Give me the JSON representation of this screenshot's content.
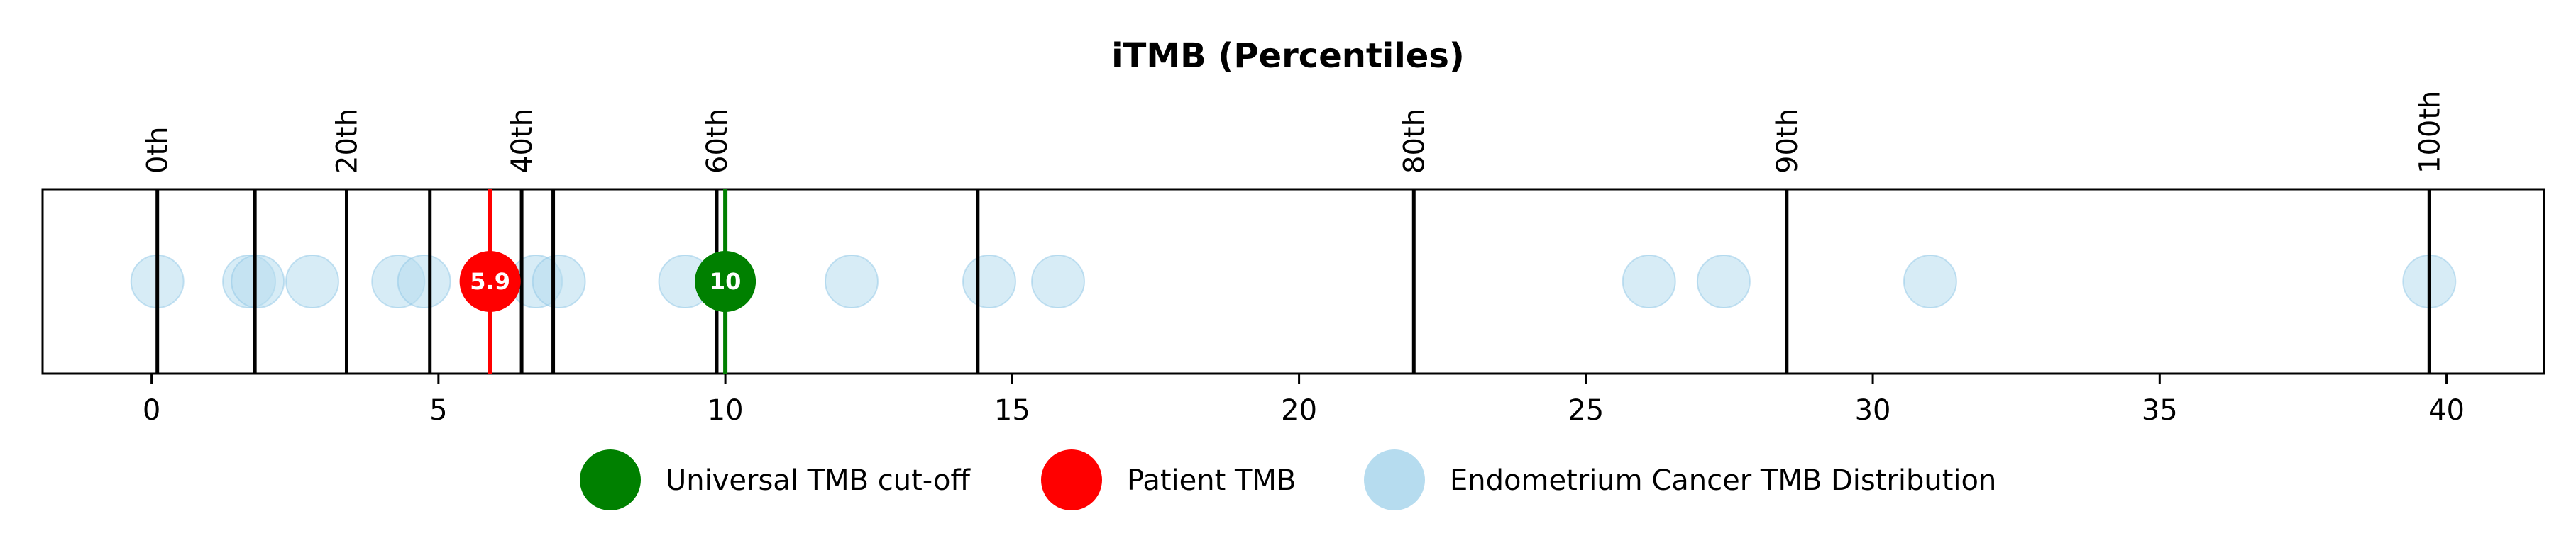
{
  "chart_data": {
    "type": "scatter",
    "title": "iTMB (Percentiles)",
    "xlabel": "",
    "ylabel": "",
    "xlim": [
      -1.9,
      41.7
    ],
    "xticks": [
      0,
      5,
      10,
      15,
      20,
      25,
      30,
      35,
      40
    ],
    "xtick_labels": [
      "0",
      "5",
      "10",
      "15",
      "20",
      "25",
      "30",
      "35",
      "40"
    ],
    "grid": false,
    "percentile_lines": [
      {
        "x": 0.1,
        "label": "0th"
      },
      {
        "x": 1.8,
        "label": ""
      },
      {
        "x": 3.4,
        "label": "20th"
      },
      {
        "x": 4.85,
        "label": ""
      },
      {
        "x": 6.45,
        "label": "40th"
      },
      {
        "x": 7.0,
        "label": ""
      },
      {
        "x": 9.85,
        "label": "60th"
      },
      {
        "x": 14.4,
        "label": ""
      },
      {
        "x": 22.0,
        "label": "80th"
      },
      {
        "x": 28.5,
        "label": "90th"
      },
      {
        "x": 39.7,
        "label": "100th"
      }
    ],
    "series": [
      {
        "name": "Endometrium Cancer TMB Distribution",
        "color": "#b6dcef",
        "x": [
          0.1,
          1.7,
          1.85,
          2.8,
          4.3,
          4.75,
          6.7,
          7.1,
          9.3,
          12.2,
          14.6,
          15.8,
          26.1,
          27.4,
          31.0,
          39.7
        ]
      },
      {
        "name": "Patient TMB",
        "color": "#ff0000",
        "x": [
          5.9
        ],
        "label": "5.9"
      },
      {
        "name": "Universal TMB cut-off",
        "color": "#008000",
        "x": [
          10
        ],
        "label": "10"
      }
    ],
    "legend": {
      "placement": "bottom-center",
      "entries": [
        {
          "label": "Universal TMB cut-off",
          "color": "#008000"
        },
        {
          "label": "Patient TMB",
          "color": "#ff0000"
        },
        {
          "label": "Endometrium Cancer TMB Distribution",
          "color": "#b6dcef"
        }
      ]
    }
  }
}
